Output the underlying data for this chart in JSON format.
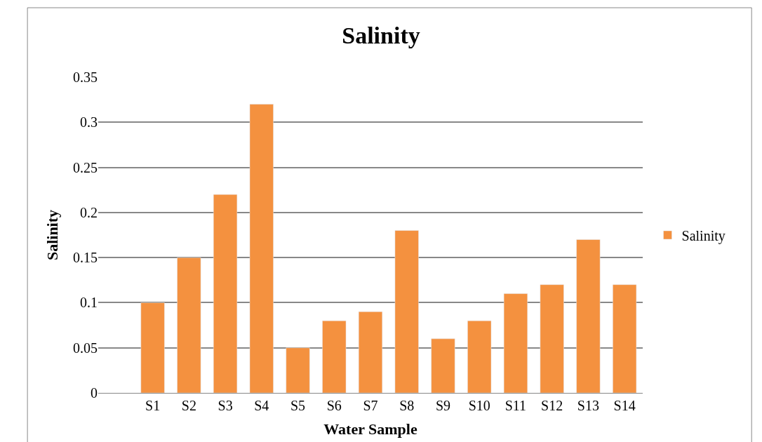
{
  "chart_data": {
    "type": "bar",
    "title": "Salinity",
    "xlabel": "Water Sample",
    "ylabel": "Salinity",
    "categories": [
      null,
      "S1",
      "S2",
      "S3",
      "S4",
      "S5",
      "S6",
      "S7",
      "S8",
      "S9",
      "S10",
      "S11",
      "S12",
      "S13",
      "S14"
    ],
    "series": [
      {
        "name": "Salinity",
        "color": "#f4913f",
        "values": [
          null,
          0.1,
          0.15,
          0.22,
          0.32,
          0.05,
          0.08,
          0.09,
          0.18,
          0.06,
          0.08,
          0.11,
          0.12,
          0.17,
          0.12
        ]
      }
    ],
    "ylim": [
      0,
      0.35
    ],
    "yticks": [
      0,
      0.05,
      0.1,
      0.15,
      0.2,
      0.25,
      0.3,
      0.35
    ],
    "grid": "y",
    "legend": "right"
  }
}
